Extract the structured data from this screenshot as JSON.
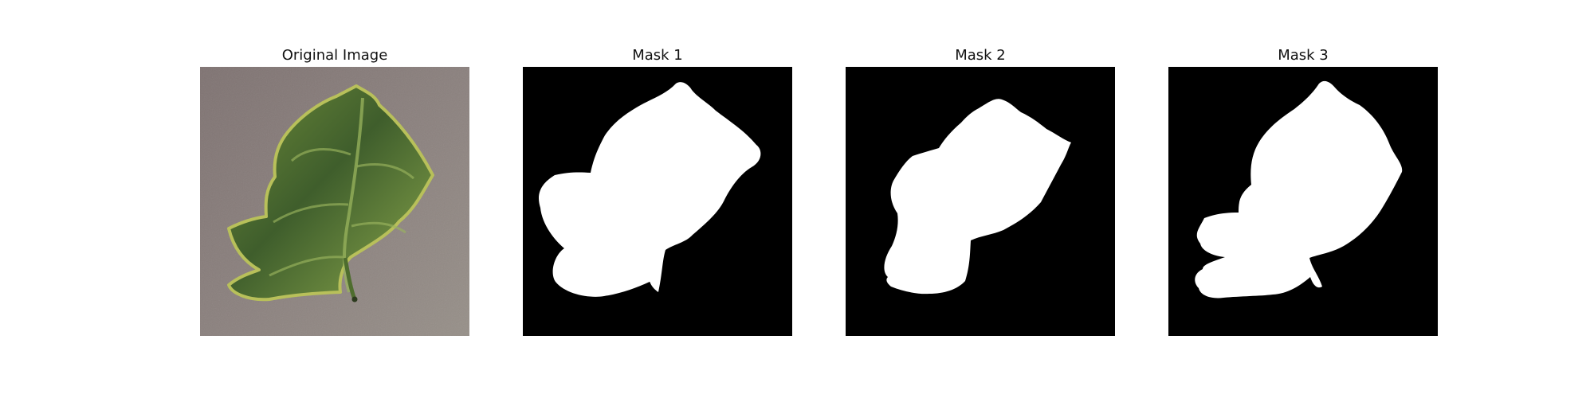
{
  "figure": {
    "panels": [
      {
        "title": "Original Image",
        "kind": "photo",
        "subject": "leaf-photo"
      },
      {
        "title": "Mask 1",
        "kind": "mask",
        "subject": "leaf-mask"
      },
      {
        "title": "Mask 2",
        "kind": "mask",
        "subject": "leaf-mask"
      },
      {
        "title": "Mask 3",
        "kind": "mask",
        "subject": "leaf-mask"
      }
    ],
    "colors": {
      "mask_background": "#000000",
      "mask_foreground": "#ffffff",
      "photo_background": "#8a7f7c",
      "leaf_dark": "#3f5e2c",
      "leaf_light": "#9cb65b",
      "leaf_edge": "#d5d76f"
    }
  }
}
